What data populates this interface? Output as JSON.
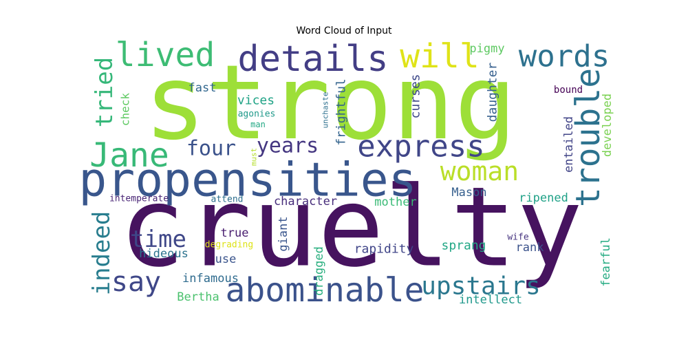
{
  "chart_data": {
    "type": "wordcloud",
    "title": "Word Cloud of Input",
    "words": [
      {
        "text": "strong",
        "weight": 1.0,
        "color": "#9ddf38"
      },
      {
        "text": "cruelty",
        "weight": 0.98,
        "color": "#46135f"
      },
      {
        "text": "propensities",
        "weight": 0.6,
        "color": "#39568c"
      },
      {
        "text": "abominable",
        "weight": 0.4,
        "color": "#3b528b"
      },
      {
        "text": "details",
        "weight": 0.42,
        "color": "#433e85"
      },
      {
        "text": "express",
        "weight": 0.4,
        "color": "#404688"
      },
      {
        "text": "words",
        "weight": 0.4,
        "color": "#2d718e"
      },
      {
        "text": "lived",
        "weight": 0.4,
        "color": "#3dbc74"
      },
      {
        "text": "will",
        "weight": 0.4,
        "color": "#dfe318"
      },
      {
        "text": "trouble",
        "weight": 0.4,
        "color": "#2c728e"
      },
      {
        "text": "Jane",
        "weight": 0.4,
        "color": "#38b977"
      },
      {
        "text": "woman",
        "weight": 0.38,
        "color": "#bade28"
      },
      {
        "text": "upstairs",
        "weight": 0.36,
        "color": "#2a778e"
      },
      {
        "text": "say",
        "weight": 0.36,
        "color": "#3f4788"
      },
      {
        "text": "four",
        "weight": 0.3,
        "color": "#3b528b"
      },
      {
        "text": "years",
        "weight": 0.3,
        "color": "#453781"
      },
      {
        "text": "time",
        "weight": 0.3,
        "color": "#3f4788"
      },
      {
        "text": "tried",
        "weight": 0.3,
        "color": "#35b779"
      },
      {
        "text": "indeed",
        "weight": 0.28,
        "color": "#287d8e"
      },
      {
        "text": "fast",
        "weight": 0.16,
        "color": "#31678e"
      },
      {
        "text": "vices",
        "weight": 0.16,
        "color": "#20a386"
      },
      {
        "text": "agonies",
        "weight": 0.12,
        "color": "#1f998a"
      },
      {
        "text": "man",
        "weight": 0.1,
        "color": "#22a884"
      },
      {
        "text": "check",
        "weight": 0.15,
        "color": "#5ec962"
      },
      {
        "text": "unchaste",
        "weight": 0.09,
        "color": "#2d708e"
      },
      {
        "text": "must",
        "weight": 0.09,
        "color": "#b5de2b"
      },
      {
        "text": "frightful",
        "weight": 0.18,
        "color": "#33638d"
      },
      {
        "text": "curses",
        "weight": 0.18,
        "color": "#3e4989"
      },
      {
        "text": "pigmy",
        "weight": 0.15,
        "color": "#5ec962"
      },
      {
        "text": "daughter",
        "weight": 0.18,
        "color": "#355f8d"
      },
      {
        "text": "bound",
        "weight": 0.12,
        "color": "#440154"
      },
      {
        "text": "entailed",
        "weight": 0.17,
        "color": "#414487"
      },
      {
        "text": "developed",
        "weight": 0.16,
        "color": "#7ad151"
      },
      {
        "text": "character",
        "weight": 0.16,
        "color": "#472d7b"
      },
      {
        "text": "mother",
        "weight": 0.15,
        "color": "#3aba76"
      },
      {
        "text": "Mason",
        "weight": 0.16,
        "color": "#355f8d"
      },
      {
        "text": "ripened",
        "weight": 0.16,
        "color": "#1fa187"
      },
      {
        "text": "intemperate",
        "weight": 0.12,
        "color": "#482475"
      },
      {
        "text": "attend",
        "weight": 0.12,
        "color": "#2e6f8e"
      },
      {
        "text": "true",
        "weight": 0.16,
        "color": "#481d6f"
      },
      {
        "text": "giant",
        "weight": 0.16,
        "color": "#39558c"
      },
      {
        "text": "degrading",
        "weight": 0.12,
        "color": "#dde318"
      },
      {
        "text": "rapidity",
        "weight": 0.18,
        "color": "#404588"
      },
      {
        "text": "sprang",
        "weight": 0.18,
        "color": "#22a785"
      },
      {
        "text": "rank",
        "weight": 0.16,
        "color": "#3b528b"
      },
      {
        "text": "wife",
        "weight": 0.12,
        "color": "#46337f"
      },
      {
        "text": "fearful",
        "weight": 0.16,
        "color": "#25ab82"
      },
      {
        "text": "hideous",
        "weight": 0.16,
        "color": "#2c738e"
      },
      {
        "text": "use",
        "weight": 0.16,
        "color": "#3a548c"
      },
      {
        "text": "dragged",
        "weight": 0.16,
        "color": "#29af7f"
      },
      {
        "text": "infamous",
        "weight": 0.16,
        "color": "#2f6b8e"
      },
      {
        "text": "Bertha",
        "weight": 0.16,
        "color": "#4ac16d"
      },
      {
        "text": "intellect",
        "weight": 0.16,
        "color": "#1f988b"
      }
    ]
  }
}
